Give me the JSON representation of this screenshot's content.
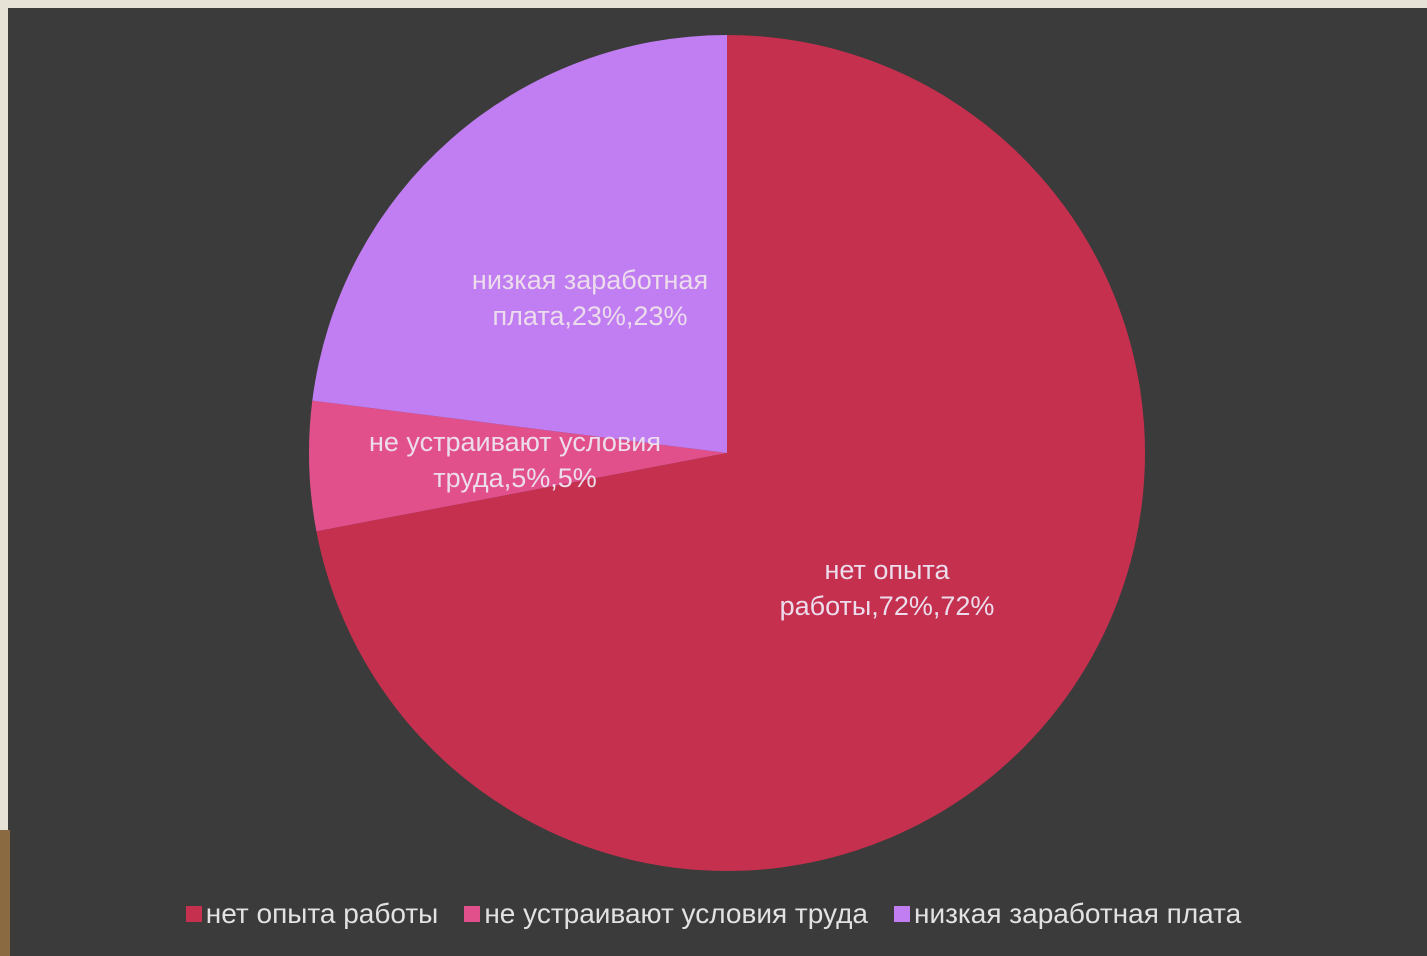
{
  "chart_data": {
    "type": "pie",
    "categories": [
      "нет опыта работы",
      "не устраивают условия труда",
      "низкая заработная плата"
    ],
    "values": [
      72,
      5,
      23
    ],
    "value_labels": [
      "нет опыта работы,72%,72%",
      "не устраивают условия труда,5%,5%",
      "низкая заработная плата,23%,23%"
    ],
    "colors": [
      "#c4304e",
      "#e2508c",
      "#c07ef2"
    ],
    "legend": "bottom"
  }
}
